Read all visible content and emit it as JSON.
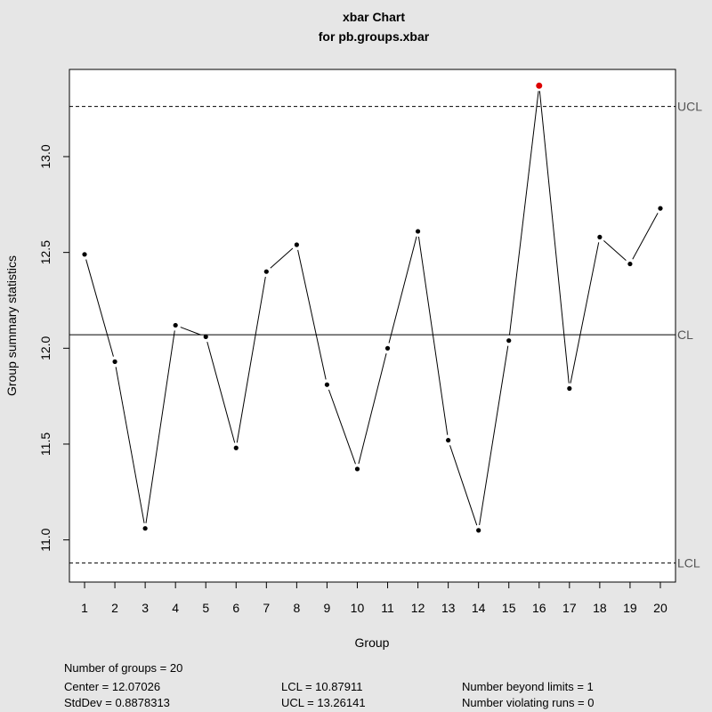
{
  "chart_data": {
    "type": "line",
    "title": "xbar Chart",
    "subtitle": "for pb.groups.xbar",
    "xlabel": "Group",
    "ylabel": "Group summary statistics",
    "x": [
      1,
      2,
      3,
      4,
      5,
      6,
      7,
      8,
      9,
      10,
      11,
      12,
      13,
      14,
      15,
      16,
      17,
      18,
      19,
      20
    ],
    "values": [
      12.49,
      11.93,
      11.06,
      12.12,
      12.06,
      11.48,
      12.4,
      12.54,
      11.81,
      11.37,
      12.0,
      12.61,
      11.52,
      11.05,
      12.04,
      13.37,
      11.79,
      12.58,
      12.44,
      12.73
    ],
    "out_of_control": [
      16
    ],
    "point_color": "#000000",
    "out_of_control_color": "#dd0000",
    "xlim": [
      0.5,
      20.5
    ],
    "ylim": [
      10.78,
      13.455
    ],
    "yticks": [
      11.0,
      11.5,
      12.0,
      12.5,
      13.0
    ],
    "ytick_labels": [
      "11.0",
      "11.5",
      "12.0",
      "12.5",
      "13.0"
    ],
    "center": 12.07026,
    "ucl": 13.26141,
    "lcl": 10.87911,
    "center_label": "CL",
    "ucl_label": "UCL",
    "lcl_label": "LCL"
  },
  "stats": {
    "groups": "Number of groups = 20",
    "center": "Center = 12.07026",
    "stddev": "StdDev = 0.8878313",
    "lcl": "LCL = 10.87911",
    "ucl": "UCL = 13.26141",
    "beyond": "Number beyond limits = 1",
    "violating": "Number violating runs = 0"
  }
}
